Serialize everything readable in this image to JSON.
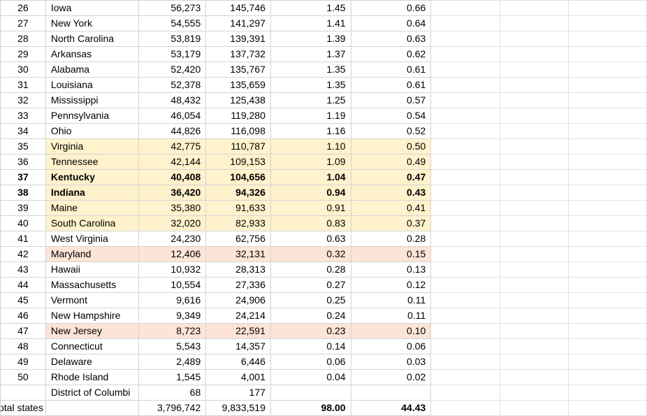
{
  "rows": [
    {
      "rank": "26",
      "state": "Iowa",
      "area_sq_mi": "56,273",
      "area_sq_km": "145,746",
      "pct_a": "1.45",
      "pct_b": "0.66",
      "style": ""
    },
    {
      "rank": "27",
      "state": "New York",
      "area_sq_mi": "54,555",
      "area_sq_km": "141,297",
      "pct_a": "1.41",
      "pct_b": "0.64",
      "style": ""
    },
    {
      "rank": "28",
      "state": "North Carolina",
      "area_sq_mi": "53,819",
      "area_sq_km": "139,391",
      "pct_a": "1.39",
      "pct_b": "0.63",
      "style": ""
    },
    {
      "rank": "29",
      "state": "Arkansas",
      "area_sq_mi": "53,179",
      "area_sq_km": "137,732",
      "pct_a": "1.37",
      "pct_b": "0.62",
      "style": ""
    },
    {
      "rank": "30",
      "state": "Alabama",
      "area_sq_mi": "52,420",
      "area_sq_km": "135,767",
      "pct_a": "1.35",
      "pct_b": "0.61",
      "style": ""
    },
    {
      "rank": "31",
      "state": "Louisiana",
      "area_sq_mi": "52,378",
      "area_sq_km": "135,659",
      "pct_a": "1.35",
      "pct_b": "0.61",
      "style": ""
    },
    {
      "rank": "32",
      "state": "Mississippi",
      "area_sq_mi": "48,432",
      "area_sq_km": "125,438",
      "pct_a": "1.25",
      "pct_b": "0.57",
      "style": ""
    },
    {
      "rank": "33",
      "state": "Pennsylvania",
      "area_sq_mi": "46,054",
      "area_sq_km": "119,280",
      "pct_a": "1.19",
      "pct_b": "0.54",
      "style": ""
    },
    {
      "rank": "34",
      "state": "Ohio",
      "area_sq_mi": "44,826",
      "area_sq_km": "116,098",
      "pct_a": "1.16",
      "pct_b": "0.52",
      "style": ""
    },
    {
      "rank": "35",
      "state": "Virginia",
      "area_sq_mi": "42,775",
      "area_sq_km": "110,787",
      "pct_a": "1.10",
      "pct_b": "0.50",
      "style": "yellow"
    },
    {
      "rank": "36",
      "state": "Tennessee",
      "area_sq_mi": "42,144",
      "area_sq_km": "109,153",
      "pct_a": "1.09",
      "pct_b": "0.49",
      "style": "yellow"
    },
    {
      "rank": "37",
      "state": "Kentucky",
      "area_sq_mi": "40,408",
      "area_sq_km": "104,656",
      "pct_a": "1.04",
      "pct_b": "0.47",
      "style": "yellow-bold"
    },
    {
      "rank": "38",
      "state": "Indiana",
      "area_sq_mi": "36,420",
      "area_sq_km": "94,326",
      "pct_a": "0.94",
      "pct_b": "0.43",
      "style": "yellow-bold"
    },
    {
      "rank": "39",
      "state": "Maine",
      "area_sq_mi": "35,380",
      "area_sq_km": "91,633",
      "pct_a": "0.91",
      "pct_b": "0.41",
      "style": "yellow"
    },
    {
      "rank": "40",
      "state": "South Carolina",
      "area_sq_mi": "32,020",
      "area_sq_km": "82,933",
      "pct_a": "0.83",
      "pct_b": "0.37",
      "style": "yellow"
    },
    {
      "rank": "41",
      "state": "West Virginia",
      "area_sq_mi": "24,230",
      "area_sq_km": "62,756",
      "pct_a": "0.63",
      "pct_b": "0.28",
      "style": ""
    },
    {
      "rank": "42",
      "state": "Maryland",
      "area_sq_mi": "12,406",
      "area_sq_km": "32,131",
      "pct_a": "0.32",
      "pct_b": "0.15",
      "style": "pink"
    },
    {
      "rank": "43",
      "state": "Hawaii",
      "area_sq_mi": "10,932",
      "area_sq_km": "28,313",
      "pct_a": "0.28",
      "pct_b": "0.13",
      "style": ""
    },
    {
      "rank": "44",
      "state": "Massachusetts",
      "area_sq_mi": "10,554",
      "area_sq_km": "27,336",
      "pct_a": "0.27",
      "pct_b": "0.12",
      "style": ""
    },
    {
      "rank": "45",
      "state": "Vermont",
      "area_sq_mi": "9,616",
      "area_sq_km": "24,906",
      "pct_a": "0.25",
      "pct_b": "0.11",
      "style": ""
    },
    {
      "rank": "46",
      "state": "New Hampshire",
      "area_sq_mi": "9,349",
      "area_sq_km": "24,214",
      "pct_a": "0.24",
      "pct_b": "0.11",
      "style": ""
    },
    {
      "rank": "47",
      "state": "New Jersey",
      "area_sq_mi": "8,723",
      "area_sq_km": "22,591",
      "pct_a": "0.23",
      "pct_b": "0.10",
      "style": "pink"
    },
    {
      "rank": "48",
      "state": "Connecticut",
      "area_sq_mi": "5,543",
      "area_sq_km": "14,357",
      "pct_a": "0.14",
      "pct_b": "0.06",
      "style": ""
    },
    {
      "rank": "49",
      "state": "Delaware",
      "area_sq_mi": "2,489",
      "area_sq_km": "6,446",
      "pct_a": "0.06",
      "pct_b": "0.03",
      "style": ""
    },
    {
      "rank": "50",
      "state": "Rhode Island",
      "area_sq_mi": "1,545",
      "area_sq_km": "4,001",
      "pct_a": "0.04",
      "pct_b": "0.02",
      "style": ""
    },
    {
      "rank": "",
      "state": "District of Columbi",
      "area_sq_mi": "68",
      "area_sq_km": "177",
      "pct_a": "",
      "pct_b": "",
      "style": ""
    }
  ],
  "total": {
    "label": "otal states",
    "area_sq_mi": "3,796,742",
    "area_sq_km": "9,833,519",
    "pct_a": "98.00",
    "pct_b": "44.43"
  },
  "colors": {
    "highlight_yellow": "#fff2cc",
    "highlight_pink": "#fce4d6",
    "gridline": "#d4d4d4"
  }
}
